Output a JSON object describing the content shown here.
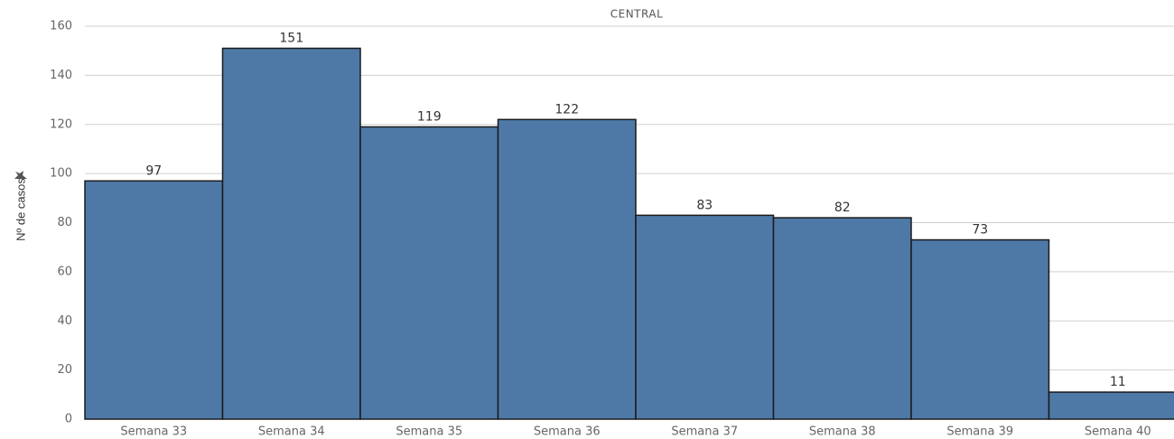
{
  "chart_data": {
    "type": "bar",
    "title": "CENTRAL",
    "y_label": "Nº de casos",
    "categories": [
      "Semana 33",
      "Semana 34",
      "Semana 35",
      "Semana 36",
      "Semana 37",
      "Semana 38",
      "Semana 39",
      "Semana 40"
    ],
    "values": [
      97,
      151,
      119,
      122,
      83,
      82,
      73,
      11
    ],
    "color": "#4e79a7",
    "ylim": [
      0,
      160
    ],
    "yticks": [
      0,
      20,
      40,
      60,
      80,
      100,
      120,
      140,
      160
    ],
    "grid": true
  }
}
